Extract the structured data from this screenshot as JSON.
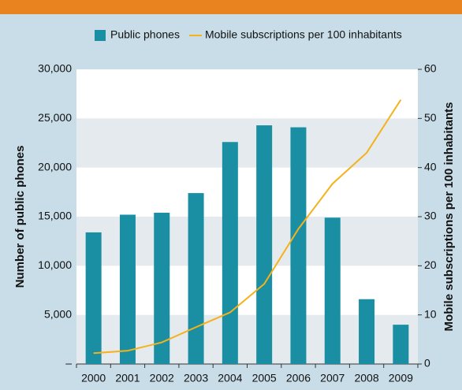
{
  "chart_data": {
    "type": "bar_line",
    "categories": [
      "2000",
      "2001",
      "2002",
      "2003",
      "2004",
      "2005",
      "2006",
      "2007",
      "2008",
      "2009"
    ],
    "series": [
      {
        "name": "Public phones",
        "type": "bar",
        "color": "#1a8fa3",
        "values": [
          13400,
          15200,
          15400,
          17400,
          22600,
          24300,
          24100,
          14900,
          6600,
          4000
        ]
      },
      {
        "name": "Mobile subscriptions per 100 inhabitants",
        "type": "line",
        "axis": "y2",
        "color": "#f5b21b",
        "values": [
          2.2,
          2.7,
          4.4,
          7.5,
          10.5,
          16.3,
          27.5,
          36.7,
          43,
          53.8
        ]
      }
    ],
    "ylabel": "Number of public phones",
    "y2label": "Mobile subscriptions per 100 inhabitants",
    "ylim": [
      0,
      30000
    ],
    "yticks": [
      {
        "value": 0,
        "label": "–"
      },
      {
        "value": 5000,
        "label": "5,000"
      },
      {
        "value": 10000,
        "label": "10,000"
      },
      {
        "value": 15000,
        "label": "15,000"
      },
      {
        "value": 20000,
        "label": "20,000"
      },
      {
        "value": 25000,
        "label": "25,000"
      },
      {
        "value": 30000,
        "label": "30,000"
      }
    ],
    "y2lim": [
      0,
      60
    ],
    "y2ticks": [
      0,
      10,
      20,
      30,
      40,
      50,
      60
    ],
    "grid": true,
    "legend": "top"
  }
}
